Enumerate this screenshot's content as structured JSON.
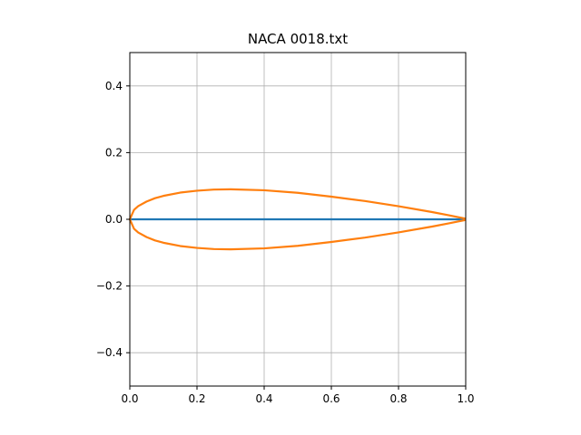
{
  "chart_data": {
    "type": "line",
    "title": "NACA 0018.txt",
    "xlabel": "",
    "ylabel": "",
    "xlim": [
      0.0,
      1.0
    ],
    "ylim": [
      -0.5,
      0.5
    ],
    "grid": true,
    "x_ticks": [
      0.0,
      0.2,
      0.4,
      0.6,
      0.8,
      1.0
    ],
    "x_tick_labels": [
      "0.0",
      "0.2",
      "0.4",
      "0.6",
      "0.8",
      "1.0"
    ],
    "y_ticks": [
      -0.4,
      -0.2,
      0.0,
      0.2,
      0.4
    ],
    "y_tick_labels": [
      "−0.4",
      "−0.2",
      "0.0",
      "0.2",
      "0.4"
    ],
    "series": [
      {
        "color": "#1f77b4",
        "x": [
          0.0,
          1.0
        ],
        "y": [
          0.0,
          0.0
        ]
      },
      {
        "color": "#ff7f0e",
        "x": [
          1.0,
          0.95,
          0.9,
          0.8,
          0.7,
          0.6,
          0.5,
          0.4,
          0.3,
          0.25,
          0.2,
          0.15,
          0.1,
          0.075,
          0.05,
          0.025,
          0.0125,
          0.0,
          0.0125,
          0.025,
          0.05,
          0.075,
          0.1,
          0.15,
          0.2,
          0.25,
          0.3,
          0.4,
          0.5,
          0.6,
          0.7,
          0.8,
          0.9,
          0.95,
          1.0
        ],
        "y": [
          0.0019,
          0.0121,
          0.0217,
          0.0392,
          0.0549,
          0.0679,
          0.0794,
          0.0871,
          0.0901,
          0.0891,
          0.0858,
          0.0801,
          0.0703,
          0.0634,
          0.0533,
          0.0395,
          0.0284,
          0.0,
          -0.0284,
          -0.0395,
          -0.0533,
          -0.0634,
          -0.0703,
          -0.0801,
          -0.0858,
          -0.0891,
          -0.0901,
          -0.0871,
          -0.0794,
          -0.0679,
          -0.0549,
          -0.0392,
          -0.0217,
          -0.0121,
          -0.0019
        ]
      }
    ]
  }
}
